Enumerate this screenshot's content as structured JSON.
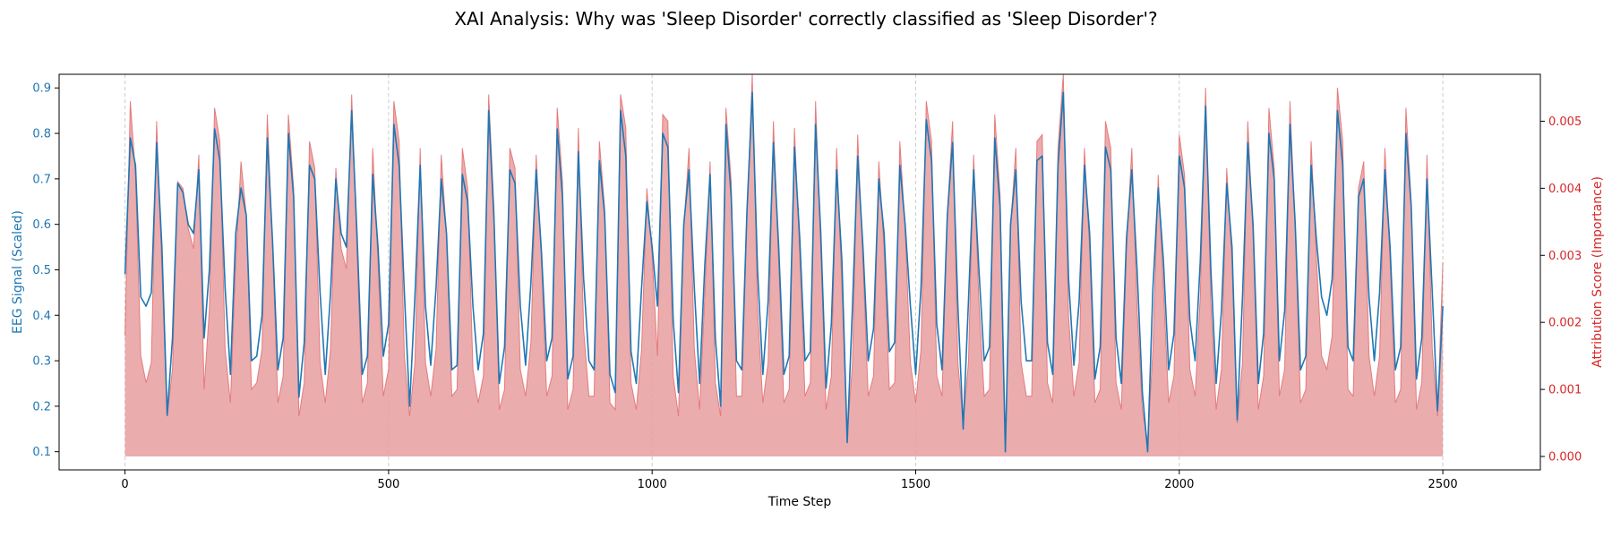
{
  "chart_data": {
    "type": "line",
    "title": "XAI Analysis: Why was 'Sleep Disorder' correctly classified as 'Sleep Disorder'?",
    "xlabel": "Time Step",
    "ylabel_left": "EEG Signal (Scaled)",
    "ylabel_right": "Attribution Score (Importance)",
    "xlim": [
      -125,
      2685
    ],
    "ylim_left": [
      0.06,
      0.93
    ],
    "ylim_right": [
      -0.0002,
      0.0057
    ],
    "x_ticks": [
      0,
      500,
      1000,
      1500,
      2000,
      2500
    ],
    "x_tick_labels": [
      "0",
      "500",
      "1000",
      "1500",
      "2000",
      "2500"
    ],
    "y_left_ticks": [
      0.1,
      0.2,
      0.3,
      0.4,
      0.5,
      0.6,
      0.7,
      0.8,
      0.9
    ],
    "y_left_tick_labels": [
      "0.1",
      "0.2",
      "0.3",
      "0.4",
      "0.5",
      "0.6",
      "0.7",
      "0.8",
      "0.9"
    ],
    "y_right_ticks": [
      0.0,
      0.001,
      0.002,
      0.003,
      0.004,
      0.005
    ],
    "y_right_tick_labels": [
      "0.000",
      "0.001",
      "0.002",
      "0.003",
      "0.004",
      "0.005"
    ],
    "grid": "vertical dashed at x ticks",
    "colors": {
      "eeg_line": "#1f77b4",
      "attribution": "#e06666",
      "attribution_fill": "#e89da0",
      "left_axis": "#1f77b4",
      "right_axis": "#d62728",
      "grid": "#cccccc",
      "text": "#000000"
    },
    "series": [
      {
        "axis": "left",
        "style": "line",
        "x_step": 10,
        "x_start": 0,
        "values": [
          0.49,
          0.79,
          0.73,
          0.44,
          0.42,
          0.45,
          0.78,
          0.55,
          0.18,
          0.35,
          0.69,
          0.67,
          0.6,
          0.58,
          0.72,
          0.35,
          0.5,
          0.81,
          0.74,
          0.46,
          0.27,
          0.58,
          0.68,
          0.62,
          0.3,
          0.31,
          0.4,
          0.79,
          0.56,
          0.28,
          0.35,
          0.8,
          0.66,
          0.22,
          0.34,
          0.73,
          0.7,
          0.45,
          0.27,
          0.45,
          0.7,
          0.58,
          0.55,
          0.85,
          0.58,
          0.27,
          0.31,
          0.71,
          0.55,
          0.31,
          0.38,
          0.82,
          0.73,
          0.45,
          0.2,
          0.44,
          0.73,
          0.42,
          0.29,
          0.46,
          0.7,
          0.58,
          0.28,
          0.29,
          0.71,
          0.65,
          0.42,
          0.28,
          0.36,
          0.85,
          0.61,
          0.25,
          0.33,
          0.72,
          0.69,
          0.42,
          0.29,
          0.47,
          0.72,
          0.54,
          0.3,
          0.35,
          0.81,
          0.66,
          0.26,
          0.31,
          0.76,
          0.48,
          0.3,
          0.28,
          0.74,
          0.62,
          0.27,
          0.23,
          0.85,
          0.75,
          0.32,
          0.25,
          0.46,
          0.65,
          0.55,
          0.42,
          0.8,
          0.77,
          0.39,
          0.23,
          0.6,
          0.72,
          0.46,
          0.25,
          0.51,
          0.71,
          0.35,
          0.2,
          0.82,
          0.66,
          0.3,
          0.28,
          0.63,
          0.89,
          0.5,
          0.27,
          0.43,
          0.78,
          0.55,
          0.27,
          0.31,
          0.77,
          0.57,
          0.3,
          0.32,
          0.82,
          0.58,
          0.24,
          0.38,
          0.72,
          0.52,
          0.12,
          0.42,
          0.75,
          0.55,
          0.3,
          0.37,
          0.7,
          0.58,
          0.32,
          0.34,
          0.73,
          0.6,
          0.42,
          0.27,
          0.46,
          0.83,
          0.74,
          0.38,
          0.28,
          0.62,
          0.78,
          0.42,
          0.15,
          0.43,
          0.72,
          0.5,
          0.3,
          0.33,
          0.79,
          0.64,
          0.1,
          0.6,
          0.72,
          0.43,
          0.3,
          0.3,
          0.74,
          0.75,
          0.34,
          0.27,
          0.73,
          0.89,
          0.48,
          0.29,
          0.43,
          0.73,
          0.58,
          0.26,
          0.33,
          0.77,
          0.72,
          0.35,
          0.25,
          0.57,
          0.72,
          0.5,
          0.23,
          0.1,
          0.46,
          0.68,
          0.52,
          0.28,
          0.36,
          0.75,
          0.68,
          0.39,
          0.3,
          0.52,
          0.86,
          0.5,
          0.25,
          0.41,
          0.69,
          0.55,
          0.17,
          0.44,
          0.78,
          0.6,
          0.25,
          0.36,
          0.8,
          0.7,
          0.3,
          0.41,
          0.82,
          0.6,
          0.28,
          0.31,
          0.73,
          0.57,
          0.44,
          0.4,
          0.48,
          0.85,
          0.73,
          0.33,
          0.3,
          0.66,
          0.7,
          0.44,
          0.3,
          0.45,
          0.72,
          0.55,
          0.28,
          0.33,
          0.8,
          0.64,
          0.26,
          0.35,
          0.7,
          0.45,
          0.19,
          0.42
        ]
      },
      {
        "axis": "right",
        "style": "area",
        "x_step": 10,
        "x_start": 0,
        "values": [
          0.0018,
          0.0053,
          0.0042,
          0.0015,
          0.0011,
          0.0014,
          0.005,
          0.0028,
          0.0006,
          0.0013,
          0.0041,
          0.004,
          0.0034,
          0.0031,
          0.0045,
          0.001,
          0.0022,
          0.0052,
          0.0047,
          0.0016,
          0.0008,
          0.0029,
          0.0044,
          0.0036,
          0.001,
          0.0011,
          0.0016,
          0.0051,
          0.0031,
          0.0008,
          0.0012,
          0.0051,
          0.004,
          0.0006,
          0.0011,
          0.0047,
          0.0043,
          0.0014,
          0.0008,
          0.0016,
          0.0043,
          0.0031,
          0.0028,
          0.0054,
          0.0031,
          0.0008,
          0.0011,
          0.0046,
          0.0029,
          0.0009,
          0.0013,
          0.0053,
          0.0047,
          0.0015,
          0.0006,
          0.0014,
          0.0046,
          0.0014,
          0.0009,
          0.0016,
          0.0045,
          0.0033,
          0.0009,
          0.001,
          0.0046,
          0.004,
          0.0013,
          0.0008,
          0.0012,
          0.0054,
          0.0037,
          0.0007,
          0.001,
          0.0046,
          0.0043,
          0.0013,
          0.0009,
          0.0017,
          0.0045,
          0.0029,
          0.0009,
          0.0012,
          0.0052,
          0.0041,
          0.0007,
          0.001,
          0.0049,
          0.0019,
          0.0009,
          0.0009,
          0.0047,
          0.0037,
          0.0008,
          0.0007,
          0.0054,
          0.0049,
          0.0011,
          0.0007,
          0.0016,
          0.004,
          0.003,
          0.0015,
          0.0051,
          0.005,
          0.0012,
          0.0006,
          0.0034,
          0.0046,
          0.0016,
          0.0007,
          0.0024,
          0.0044,
          0.0011,
          0.0006,
          0.0052,
          0.0041,
          0.0009,
          0.0009,
          0.0036,
          0.0057,
          0.0022,
          0.0008,
          0.0014,
          0.005,
          0.0029,
          0.0008,
          0.001,
          0.0049,
          0.003,
          0.0009,
          0.0011,
          0.0053,
          0.0031,
          0.0007,
          0.0012,
          0.0046,
          0.0025,
          0.0003,
          0.0014,
          0.0048,
          0.0029,
          0.0009,
          0.0012,
          0.0044,
          0.0031,
          0.001,
          0.0011,
          0.0047,
          0.0034,
          0.0014,
          0.0008,
          0.0016,
          0.0053,
          0.0047,
          0.0012,
          0.0009,
          0.0036,
          0.005,
          0.0014,
          0.0005,
          0.0014,
          0.0045,
          0.0023,
          0.0009,
          0.001,
          0.0051,
          0.0039,
          0.0002,
          0.0034,
          0.0046,
          0.0014,
          0.0009,
          0.0009,
          0.0047,
          0.0048,
          0.0011,
          0.0008,
          0.0046,
          0.0057,
          0.0021,
          0.0009,
          0.0014,
          0.0046,
          0.0031,
          0.0008,
          0.001,
          0.005,
          0.0046,
          0.0011,
          0.0007,
          0.0031,
          0.0046,
          0.0022,
          0.0007,
          0.0002,
          0.0016,
          0.0042,
          0.0025,
          0.0008,
          0.0012,
          0.0048,
          0.0042,
          0.0013,
          0.0009,
          0.0024,
          0.0055,
          0.0023,
          0.0007,
          0.0013,
          0.0043,
          0.0029,
          0.0005,
          0.0014,
          0.005,
          0.0033,
          0.0007,
          0.0012,
          0.0052,
          0.0043,
          0.0009,
          0.0013,
          0.0053,
          0.0034,
          0.0008,
          0.001,
          0.0047,
          0.003,
          0.0015,
          0.0013,
          0.0018,
          0.0055,
          0.0047,
          0.001,
          0.0009,
          0.004,
          0.0044,
          0.0015,
          0.0009,
          0.0015,
          0.0046,
          0.0029,
          0.0008,
          0.001,
          0.0052,
          0.0038,
          0.0007,
          0.0011,
          0.0045,
          0.0016,
          0.0006,
          0.0029
        ]
      }
    ]
  }
}
